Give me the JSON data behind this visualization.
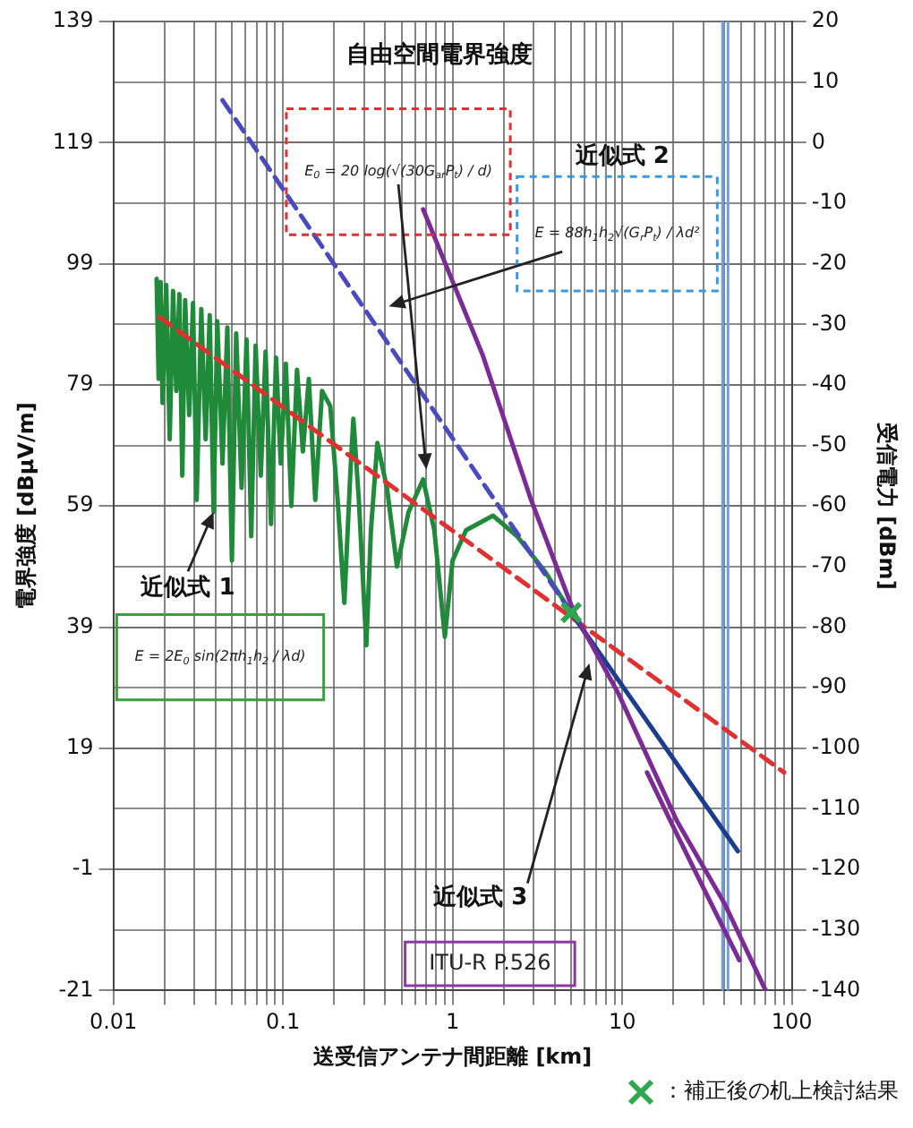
{
  "chart_data": {
    "type": "line",
    "xlabel": "送受信アンテナ間距離 [km]",
    "ylabel": "電界強度 [dBμV/m]",
    "y2label": "受信電力 [dBm]",
    "log": "x",
    "grid": true,
    "legend": "bottom right",
    "marker": "none",
    "xlim": [
      0.01,
      100
    ],
    "xticks": [
      0.01,
      {
        "value": 0.02,
        "label": null
      },
      {
        "value": 0.03,
        "label": null
      },
      {
        "value": 0.04,
        "label": null
      },
      {
        "value": 0.05,
        "label": null
      },
      {
        "value": 0.06,
        "label": null
      },
      {
        "value": 0.07,
        "label": null
      },
      {
        "value": 0.08,
        "label": null
      },
      {
        "value": 0.09,
        "label": null
      },
      0.1,
      {
        "value": 0.2,
        "label": null
      },
      {
        "value": 0.3,
        "label": null
      },
      {
        "value": 0.4,
        "label": null
      },
      {
        "value": 0.5,
        "label": null
      },
      {
        "value": 0.6,
        "label": null
      },
      {
        "value": 0.7,
        "label": null
      },
      {
        "value": 0.8,
        "label": null
      },
      {
        "value": 0.9,
        "label": null
      },
      1,
      {
        "value": 2,
        "label": null
      },
      {
        "value": 3,
        "label": null
      },
      {
        "value": 4,
        "label": null
      },
      {
        "value": 5,
        "label": null
      },
      {
        "value": 6,
        "label": null
      },
      {
        "value": 7,
        "label": null
      },
      {
        "value": 8,
        "label": null
      },
      {
        "value": 9,
        "label": null
      },
      10,
      {
        "value": 20,
        "label": null
      },
      {
        "value": 30,
        "label": null
      },
      {
        "value": 40,
        "label": null
      },
      {
        "value": 50,
        "label": null
      },
      {
        "value": 60,
        "label": null
      },
      {
        "value": 70,
        "label": null
      },
      {
        "value": 80,
        "label": null
      },
      {
        "value": 90,
        "label": null
      },
      100
    ],
    "ylim": [
      -21,
      139
    ],
    "yticks": [
      -21,
      -1,
      19,
      39,
      59,
      79,
      99,
      119,
      139
    ],
    "y2lim": [
      -140,
      20
    ],
    "y2ticks": [
      -140,
      -130,
      -120,
      -110,
      -100,
      -90,
      -80,
      -70,
      -60,
      -50,
      -40,
      -30,
      -20,
      -10,
      0,
      10,
      20
    ],
    "ref_lines": [
      {
        "axis": "x",
        "value": 39,
        "color": "#6fa0dc"
      },
      {
        "axis": "x",
        "value": 42,
        "color": "#6fa0dc"
      }
    ],
    "series": [
      {
        "type": "line",
        "color": "#1e8a3a",
        "x": [
          0.018,
          0.0185,
          0.019,
          0.0195,
          0.0205,
          0.0215,
          0.0225,
          0.0235,
          0.0245,
          0.0255,
          0.0265,
          0.028,
          0.0295,
          0.031,
          0.033,
          0.035,
          0.037,
          0.039,
          0.041,
          0.044,
          0.047,
          0.05,
          0.053,
          0.057,
          0.061,
          0.065,
          0.069,
          0.074,
          0.079,
          0.085,
          0.091,
          0.097,
          0.104,
          0.112,
          0.121,
          0.131,
          0.142,
          0.155,
          0.17,
          0.19,
          0.21,
          0.23,
          0.25,
          0.26,
          0.28,
          0.31,
          0.33,
          0.36,
          0.41,
          0.47,
          0.55,
          0.67,
          0.78,
          0.9,
          1.0,
          1.2,
          1.73,
          2.4,
          3.5,
          5,
          8
        ],
        "values": [
          96.5,
          80,
          96,
          76,
          95.5,
          70,
          94.5,
          78,
          94,
          64,
          93,
          74,
          92.5,
          60,
          91.5,
          70,
          90.5,
          58,
          89.5,
          66,
          88.5,
          50,
          87.5,
          62,
          86.5,
          54,
          85.5,
          64,
          84.5,
          56,
          83.5,
          66,
          82.5,
          59,
          81.5,
          68,
          80,
          60,
          78,
          75.5,
          60,
          43,
          65,
          73.4,
          60,
          36,
          55,
          69.4,
          62,
          49,
          58,
          63.4,
          55,
          37.4,
          50,
          55,
          57.4,
          54,
          48.2,
          41.4,
          33
        ]
      },
      {
        "type": "line",
        "color": "#e03030",
        "line_style": "dashed",
        "x": [
          0.0187,
          90
        ],
        "values": [
          90.2,
          15
        ]
      },
      {
        "type": "line",
        "color": "#4a4ac0",
        "line_style": "dashed",
        "x": [
          0.044,
          5
        ],
        "values": [
          126,
          41.4
        ]
      },
      {
        "type": "line",
        "color": "#1c3d8f",
        "x": [
          5,
          48
        ],
        "values": [
          41.4,
          2
        ]
      },
      {
        "type": "line",
        "color": "#7b2a96",
        "x": [
          0.67,
          1.5,
          2.9,
          5.2,
          9.5,
          21,
          40,
          70
        ],
        "values": [
          108,
          84,
          60,
          41.4,
          28,
          7,
          -6.6,
          -21
        ]
      },
      {
        "type": "line",
        "color": "#7b2a96",
        "x": [
          14,
          20,
          30,
          49
        ],
        "values": [
          15,
          6,
          -4,
          -16
        ]
      },
      {
        "type": "scatter",
        "name": "：補正後の机上検討結果",
        "color": "#2ea84e",
        "marker": "cross",
        "x": [
          5
        ],
        "values": [
          41.4
        ]
      }
    ],
    "annotations": [
      "自由空間電界強度",
      {
        "text": "E$_{0}$ = 20 log(√(30G$_{ar}$P$_{t}$) / d)",
        "x": 0.7,
        "y": 65
      },
      "近似式 2",
      "E = 88h$_{1}$h$_{2}$√(G$_{r}$P$_{t}$) / λd²",
      {
        "text": "近似式 1",
        "x": 0.039,
        "y": 58
      },
      "E = 2E$_{0}$ sin(2πh$_{1}$h$_{2}$ / λd)",
      {
        "text": "近似式 3",
        "x": 6.4,
        "y": 33
      },
      "ITU-R P.526"
    ]
  }
}
